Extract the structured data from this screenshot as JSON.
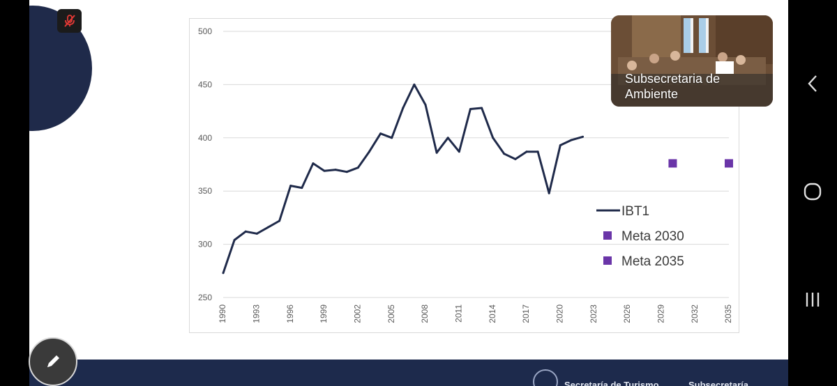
{
  "meeting": {
    "participant_tile": {
      "name": "Subsecretaria de Ambiente"
    },
    "controls": {
      "mute_icon": "mic-off-icon",
      "edit_icon": "pencil-icon"
    }
  },
  "presentation": {
    "footer": {
      "left_text": "Secretaría de Turismo",
      "right_text": "Subsecretaría"
    },
    "brand_color": "#1f2a4a"
  },
  "chart_data": {
    "type": "line",
    "title": "",
    "xlabel": "",
    "ylabel": "",
    "ylim": [
      250,
      500
    ],
    "yticks": [
      250,
      300,
      350,
      400,
      450,
      500
    ],
    "xlim": [
      1990,
      2035
    ],
    "xticks": [
      1990,
      1993,
      1996,
      1999,
      2002,
      2005,
      2008,
      2011,
      2014,
      2017,
      2020,
      2023,
      2026,
      2029,
      2032,
      2035
    ],
    "grid": "horizontal",
    "legend_position": "right",
    "series": [
      {
        "name": "IBT1",
        "kind": "line",
        "color": "#1f2a4a",
        "x": [
          1990,
          1991,
          1992,
          1993,
          1994,
          1995,
          1996,
          1997,
          1998,
          1999,
          2000,
          2001,
          2002,
          2003,
          2004,
          2005,
          2006,
          2007,
          2008,
          2009,
          2010,
          2011,
          2012,
          2013,
          2014,
          2015,
          2016,
          2017,
          2018,
          2019,
          2020,
          2021,
          2022
        ],
        "y": [
          273,
          304,
          312,
          310,
          316,
          322,
          355,
          353,
          376,
          369,
          370,
          368,
          372,
          387,
          404,
          400,
          428,
          450,
          431,
          386,
          400,
          387,
          427,
          428,
          400,
          385,
          380,
          387,
          387,
          348,
          393,
          398,
          401
        ]
      },
      {
        "name": "Meta 2030",
        "kind": "marker",
        "color": "#6a35a8",
        "x": [
          2030
        ],
        "y": [
          376
        ]
      },
      {
        "name": "Meta 2035",
        "kind": "marker",
        "color": "#6a35a8",
        "x": [
          2035
        ],
        "y": [
          376
        ]
      }
    ]
  }
}
